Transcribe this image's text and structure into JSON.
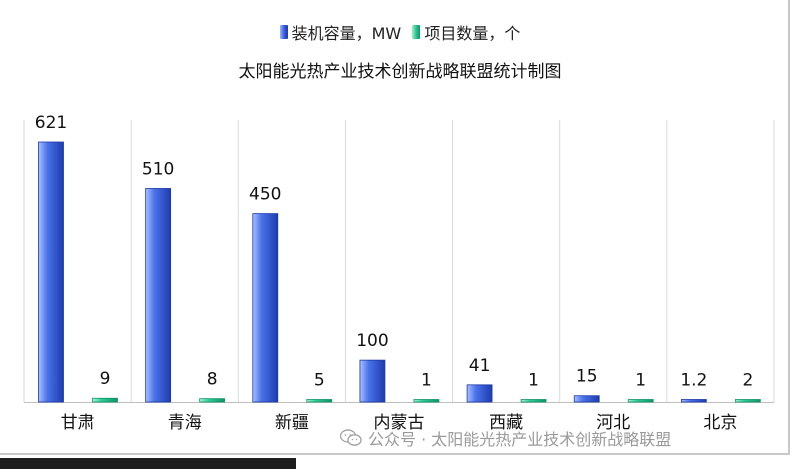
{
  "legend": {
    "items": [
      {
        "label": "装机容量，MW",
        "color": "#3b63e0"
      },
      {
        "label": "项目数量，个",
        "color": "#20c08a"
      }
    ]
  },
  "chart_data": {
    "type": "bar",
    "title": "太阳能光热产业技术创新战略联盟统计制图",
    "categories": [
      "甘肃",
      "青海",
      "新疆",
      "内蒙古",
      "西藏",
      "河北",
      "北京"
    ],
    "series": [
      {
        "name": "装机容量，MW",
        "values": [
          621,
          510,
          450,
          100,
          41,
          15,
          1.2
        ],
        "labels": [
          "621",
          "510",
          "450",
          "100",
          "41",
          "15",
          "1.2"
        ]
      },
      {
        "name": "项目数量，个",
        "values": [
          9,
          8,
          5,
          1,
          1,
          1,
          2
        ],
        "labels": [
          "9",
          "8",
          "5",
          "1",
          "1",
          "1",
          "2"
        ]
      }
    ],
    "ylim": [
      0,
      650
    ],
    "grid": "vertical-category-separators",
    "legend_position": "top"
  },
  "watermark": {
    "text": "公众号 · 太阳能光热产业技术创新战略联盟",
    "icon": "wechat-icon"
  }
}
